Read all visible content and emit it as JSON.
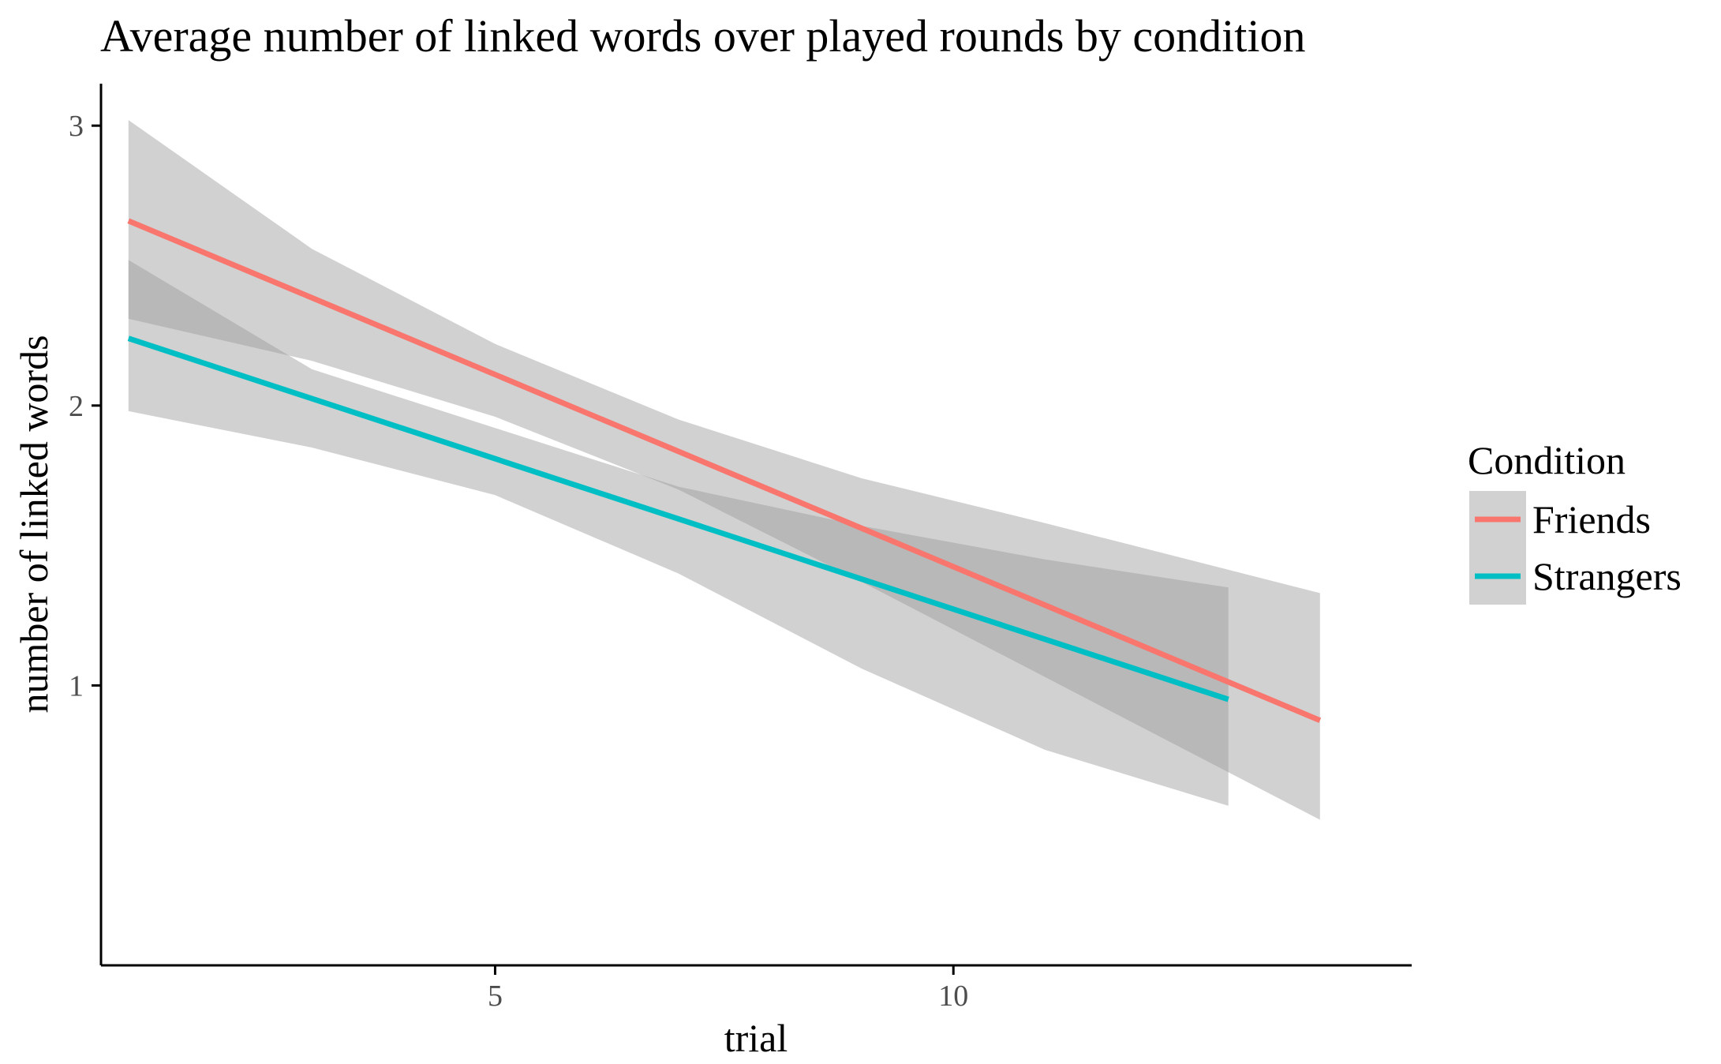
{
  "chart_data": {
    "type": "line",
    "title": "Average number of linked words over played rounds by condition",
    "xlabel": "trial",
    "ylabel": "number of linked words",
    "xlim": [
      0.7,
      15.0
    ],
    "ylim": [
      0.0,
      3.15
    ],
    "x_ticks": [
      5,
      10
    ],
    "y_ticks": [
      1,
      2,
      3
    ],
    "grid": false,
    "legend": {
      "title": "Condition",
      "position": "right"
    },
    "band_color": "#999999",
    "series": [
      {
        "name": "Friends",
        "color": "#f8766d",
        "x": [
          1,
          14
        ],
        "y": [
          2.66,
          0.875
        ],
        "ci_x": [
          1,
          3,
          5,
          7,
          9,
          11,
          14
        ],
        "ci_lower": [
          2.31,
          2.16,
          1.96,
          1.7,
          1.37,
          1.03,
          0.52
        ],
        "ci_upper": [
          3.02,
          2.56,
          2.22,
          1.95,
          1.74,
          1.58,
          1.33
        ]
      },
      {
        "name": "Strangers",
        "color": "#00bfc4",
        "x": [
          1,
          13
        ],
        "y": [
          2.24,
          0.95
        ],
        "ci_x": [
          1,
          3,
          5,
          7,
          9,
          11,
          13
        ],
        "ci_lower": [
          1.98,
          1.85,
          1.68,
          1.4,
          1.06,
          0.77,
          0.57
        ],
        "ci_upper": [
          2.52,
          2.13,
          1.92,
          1.71,
          1.57,
          1.45,
          1.35
        ]
      }
    ]
  }
}
